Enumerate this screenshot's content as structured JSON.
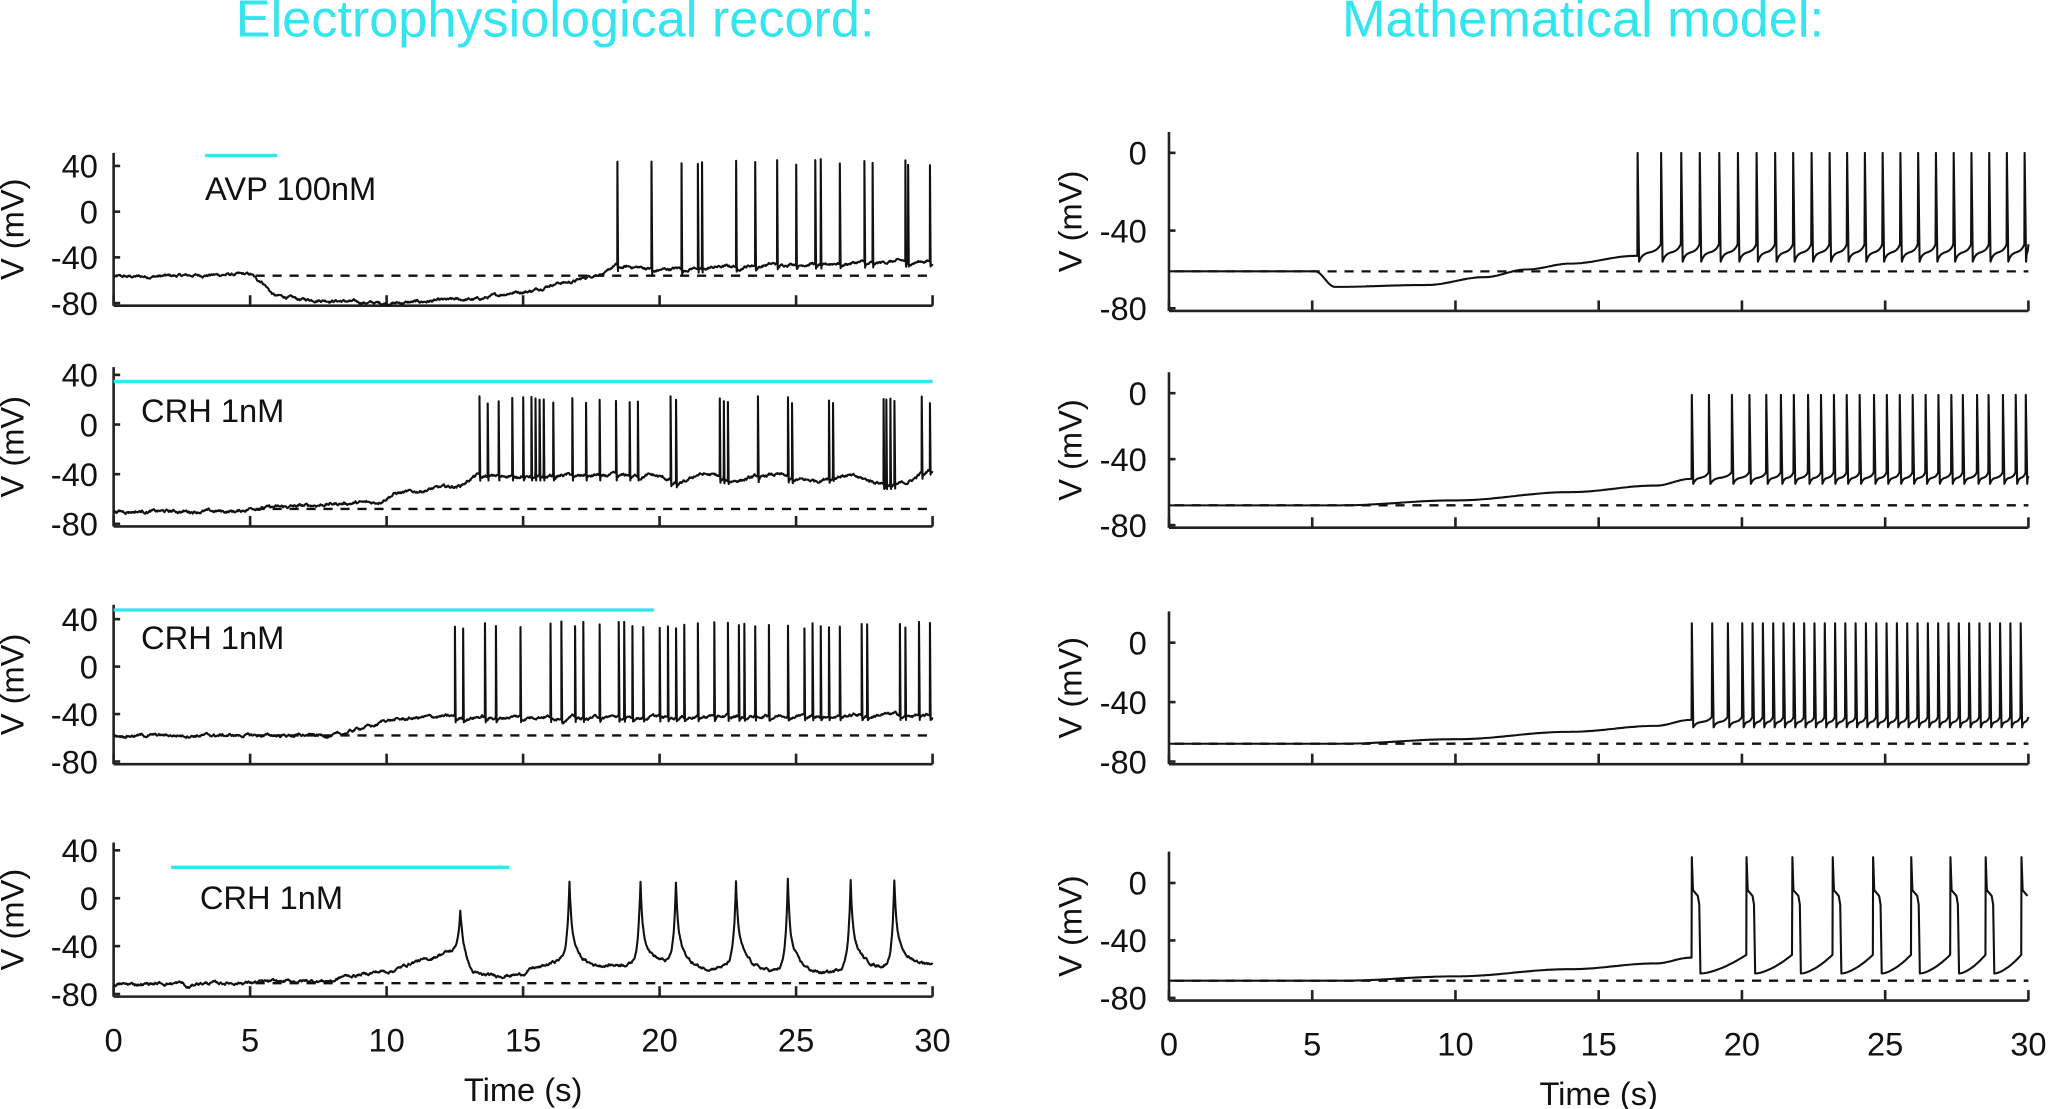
{
  "titles": {
    "left": "Electrophysiological record:",
    "right": "Mathematical model:"
  },
  "colors": {
    "title": "#33e5ef",
    "drug_bar": "#33e5ef",
    "trace": "#111111"
  },
  "chart_data": [
    {
      "type": "line",
      "column": "left",
      "row": 1,
      "annotation": "AVP 100nM",
      "drug_bar": [
        3.35,
        6.0
      ],
      "ylabel": "V (mV)",
      "xlabel": "",
      "xlim": [
        0,
        30
      ],
      "ylim": [
        -80,
        40
      ],
      "yticks": [
        "40",
        "0",
        "-40",
        "-80"
      ],
      "xticks": [
        "0",
        "5",
        "10",
        "15",
        "20",
        "25",
        "30"
      ],
      "show_xtick_labels": false,
      "reference_level": -56,
      "source": "recorded",
      "baseline": [
        [
          0,
          -57
        ],
        [
          5,
          -55
        ],
        [
          5.3,
          -60
        ],
        [
          6,
          -74
        ],
        [
          7,
          -77
        ],
        [
          10,
          -80
        ],
        [
          13,
          -77
        ],
        [
          15,
          -70
        ],
        [
          16.5,
          -62
        ],
        [
          18,
          -54
        ],
        [
          18.4,
          -47
        ],
        [
          20,
          -50
        ],
        [
          22,
          -48
        ],
        [
          25,
          -45
        ],
        [
          30,
          -43
        ]
      ],
      "spike_times": [
        18.45,
        19.7,
        20.8,
        21.4,
        21.55,
        22.8,
        23.5,
        24.3,
        25.0,
        25.7,
        25.9,
        26.6,
        27.5,
        27.8,
        29.0,
        29.1,
        29.9
      ],
      "spike_peak": 43
    },
    {
      "type": "line",
      "column": "left",
      "row": 2,
      "annotation": "CRH 1nM",
      "drug_bar": [
        0,
        30
      ],
      "ylabel": "V (mV)",
      "xlabel": "",
      "xlim": [
        0,
        30
      ],
      "ylim": [
        -80,
        40
      ],
      "yticks": [
        "40",
        "0",
        "-40",
        "-80"
      ],
      "xticks": [
        "0",
        "5",
        "10",
        "15",
        "20",
        "25",
        "30"
      ],
      "show_xtick_labels": false,
      "reference_level": -68,
      "source": "recorded",
      "baseline": [
        [
          0,
          -70
        ],
        [
          4.5,
          -70
        ],
        [
          5.2,
          -67
        ],
        [
          9.5,
          -63
        ],
        [
          10.5,
          -55
        ],
        [
          12.5,
          -50
        ],
        [
          13.5,
          -40
        ],
        [
          19.5,
          -40
        ],
        [
          20.8,
          -46
        ],
        [
          21.5,
          -40
        ],
        [
          23,
          -44
        ],
        [
          24,
          -40
        ],
        [
          25.8,
          -45
        ],
        [
          26.5,
          -40
        ],
        [
          28.3,
          -47
        ],
        [
          29,
          -46
        ],
        [
          30,
          -35
        ]
      ],
      "spike_times": [
        13.4,
        13.7,
        14.1,
        14.6,
        15.0,
        15.3,
        15.45,
        15.6,
        15.75,
        16.1,
        16.8,
        17.3,
        17.8,
        18.4,
        18.9,
        19.2,
        20.4,
        20.6,
        22.2,
        22.35,
        22.5,
        23.6,
        24.7,
        24.85,
        26.2,
        26.35,
        28.2,
        28.3,
        28.45,
        28.6,
        29.6,
        29.9
      ],
      "spike_peak": 20
    },
    {
      "type": "line",
      "column": "left",
      "row": 3,
      "annotation": "CRH 1nM",
      "drug_bar": [
        0,
        19.8
      ],
      "ylabel": "V (mV)",
      "xlabel": "",
      "xlim": [
        0,
        30
      ],
      "ylim": [
        -80,
        40
      ],
      "yticks": [
        "40",
        "0",
        "-40",
        "-80"
      ],
      "xticks": [
        "0",
        "5",
        "10",
        "15",
        "20",
        "25",
        "30"
      ],
      "show_xtick_labels": false,
      "reference_level": -58,
      "source": "recorded",
      "baseline": [
        [
          0,
          -58
        ],
        [
          8,
          -58
        ],
        [
          9.5,
          -50
        ],
        [
          10,
          -45
        ],
        [
          12,
          -42
        ],
        [
          30,
          -40
        ]
      ],
      "spike_times": [
        12.5,
        12.8,
        13.6,
        14.0,
        14.9,
        16.0,
        16.4,
        16.9,
        17.2,
        17.8,
        18.5,
        18.7,
        19.0,
        19.4,
        20.0,
        20.3,
        20.6,
        20.9,
        21.4,
        22.0,
        22.5,
        22.9,
        23.1,
        23.5,
        24.0,
        24.7,
        25.3,
        25.6,
        25.9,
        26.2,
        26.6,
        27.4,
        27.6,
        28.8,
        29.0,
        29.5,
        29.9
      ],
      "spike_peak": 35
    },
    {
      "type": "line",
      "column": "left",
      "row": 4,
      "annotation": "CRH 1nM",
      "drug_bar": [
        2.1,
        14.5
      ],
      "ylabel": "V (mV)",
      "xlabel": "Time (s)",
      "xlim": [
        0,
        30
      ],
      "ylim": [
        -80,
        40
      ],
      "yticks": [
        "40",
        "0",
        "-40",
        "-80"
      ],
      "xticks": [
        "0",
        "5",
        "10",
        "15",
        "20",
        "25",
        "30"
      ],
      "show_xtick_labels": true,
      "reference_level": -71,
      "source": "recorded",
      "baseline": [
        [
          0,
          -72
        ],
        [
          2.5,
          -71
        ],
        [
          2.7,
          -75
        ],
        [
          3.1,
          -71
        ],
        [
          8,
          -69
        ],
        [
          8.5,
          -65
        ],
        [
          10,
          -61
        ],
        [
          11.3,
          -52
        ],
        [
          12.3,
          -45
        ],
        [
          12.6,
          -45
        ],
        [
          13.2,
          -66
        ],
        [
          14.8,
          -64
        ],
        [
          15.5,
          -58
        ],
        [
          16.4,
          -52
        ],
        [
          17.2,
          -58
        ],
        [
          19,
          -55
        ],
        [
          20,
          -55
        ],
        [
          21.5,
          -60
        ],
        [
          22.5,
          -57
        ],
        [
          24,
          -61
        ],
        [
          26,
          -63
        ],
        [
          27,
          -58
        ],
        [
          28,
          -58
        ],
        [
          30,
          -55
        ]
      ],
      "burst_times": [
        12.7,
        16.7,
        19.3,
        20.6,
        22.8,
        24.7,
        27.0,
        28.6
      ],
      "burst_peaks": [
        -10,
        14,
        14,
        12,
        14,
        15,
        16,
        15
      ]
    },
    {
      "type": "line",
      "column": "right",
      "row": 1,
      "annotation": "",
      "ylabel": "V (mV)",
      "xlabel": "",
      "xlim": [
        0,
        30
      ],
      "ylim": [
        -80,
        10
      ],
      "yticks": [
        "0",
        "-40",
        "-80"
      ],
      "xticks": [
        "0",
        "5",
        "10",
        "15",
        "20",
        "25",
        "30"
      ],
      "show_xtick_labels": false,
      "reference_level": -61,
      "source": "model",
      "baseline": [
        [
          0,
          -61
        ],
        [
          5.1,
          -61
        ],
        [
          5.8,
          -69
        ],
        [
          9,
          -68
        ],
        [
          11,
          -64
        ],
        [
          12.5,
          -60
        ],
        [
          14,
          -57
        ],
        [
          16.3,
          -53
        ]
      ],
      "spike_times": [
        16.35,
        17.17,
        17.87,
        18.52,
        19.2,
        19.85,
        20.5,
        21.15,
        21.78,
        22.42,
        23.05,
        23.66,
        24.28,
        24.9,
        25.52,
        26.14,
        26.76,
        27.38,
        28.0,
        28.62,
        29.24,
        29.86
      ],
      "spike_peak": 0,
      "trough": -56,
      "threshold": -47
    },
    {
      "type": "line",
      "column": "right",
      "row": 2,
      "annotation": "",
      "ylabel": "V (mV)",
      "xlabel": "",
      "xlim": [
        0,
        30
      ],
      "ylim": [
        -80,
        10
      ],
      "yticks": [
        "0",
        "-40",
        "-80"
      ],
      "xticks": [
        "0",
        "5",
        "10",
        "15",
        "20",
        "25",
        "30"
      ],
      "show_xtick_labels": false,
      "reference_level": -68,
      "source": "model",
      "baseline": [
        [
          0,
          -68
        ],
        [
          6,
          -68
        ],
        [
          10,
          -65
        ],
        [
          14,
          -60
        ],
        [
          17,
          -56
        ],
        [
          18.2,
          -52
        ]
      ],
      "spike_times": [
        18.24,
        18.84,
        19.64,
        20.25,
        20.84,
        21.35,
        21.8,
        22.3,
        22.75,
        23.2,
        23.65,
        24.1,
        24.6,
        25.05,
        25.5,
        25.95,
        26.4,
        26.85,
        27.3,
        27.7,
        28.2,
        28.6,
        29.1,
        29.55,
        29.9
      ],
      "spike_peak": -1,
      "trough": -55,
      "threshold": -48
    },
    {
      "type": "line",
      "column": "right",
      "row": 3,
      "annotation": "",
      "ylabel": "V (mV)",
      "xlabel": "",
      "xlim": [
        0,
        30
      ],
      "ylim": [
        -80,
        10
      ],
      "yticks": [
        "0",
        "-40",
        "-80"
      ],
      "xticks": [
        "0",
        "5",
        "10",
        "15",
        "20",
        "25",
        "30"
      ],
      "show_xtick_labels": false,
      "reference_level": -68,
      "source": "model",
      "baseline": [
        [
          0,
          -68
        ],
        [
          6,
          -68
        ],
        [
          10,
          -65
        ],
        [
          14,
          -60
        ],
        [
          17,
          -56
        ],
        [
          18.2,
          -52
        ]
      ],
      "spike_times": [
        18.24,
        18.95,
        19.5,
        20.0,
        20.36,
        20.72,
        21.08,
        21.44,
        21.8,
        22.16,
        22.52,
        22.88,
        23.24,
        23.6,
        23.96,
        24.32,
        24.68,
        25.04,
        25.4,
        25.76,
        26.12,
        26.48,
        26.84,
        27.2,
        27.56,
        27.92,
        28.28,
        28.64,
        29.0,
        29.36,
        29.72
      ],
      "spike_peak": 13,
      "trough": -57,
      "threshold": -50
    },
    {
      "type": "line",
      "column": "right",
      "row": 4,
      "annotation": "",
      "ylabel": "V (mV)",
      "xlabel": "Time (s)",
      "xlim": [
        0,
        30
      ],
      "ylim": [
        -80,
        10
      ],
      "yticks": [
        "0",
        "-40",
        "-80"
      ],
      "xticks": [
        "0",
        "5",
        "10",
        "15",
        "20",
        "25",
        "30"
      ],
      "show_xtick_labels": true,
      "reference_level": -68,
      "source": "model",
      "baseline": [
        [
          0,
          -68
        ],
        [
          6,
          -68
        ],
        [
          10,
          -65
        ],
        [
          14,
          -60
        ],
        [
          17,
          -56
        ],
        [
          18.2,
          -52
        ]
      ],
      "spike_times": [
        18.24,
        20.15,
        21.75,
        23.16,
        24.57,
        25.9,
        27.27,
        28.5,
        29.75
      ],
      "spike_peak": 18,
      "plateau": -5,
      "trough": -63,
      "threshold": -50
    }
  ]
}
